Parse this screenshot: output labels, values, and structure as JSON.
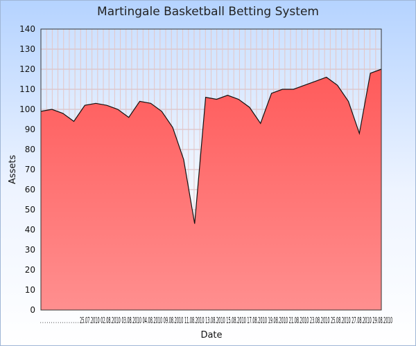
{
  "chart_data": {
    "type": "area",
    "title": "Martingale Basketball Betting System",
    "xlabel": "Date",
    "ylabel": "Assets",
    "ylim": [
      0,
      140
    ],
    "yticks": [
      0,
      10,
      20,
      30,
      40,
      50,
      60,
      70,
      80,
      90,
      100,
      110,
      120,
      130,
      140
    ],
    "grid": true,
    "x_tick_labels_text": ". . . . . . . . . . . . . . . . . . 25.07.2010 02.08.2010 03.08.2010 04.08.2010 09.08.2010 11.08.2010 13.08.2010 15.08.2010 17.08.2010 19.08.2010 21.08.2010 23.08.2010 25.08.2010 27.08.2010 29.08.2010",
    "values": [
      99,
      100,
      98,
      94,
      102,
      103,
      102,
      100,
      96,
      104,
      103,
      99,
      91,
      75,
      43,
      106,
      105,
      107,
      105,
      101,
      93,
      108,
      110,
      110,
      112,
      114,
      116,
      112,
      104,
      88,
      118,
      120
    ],
    "colors": {
      "fill_top": "#ff5a5a",
      "fill_bottom": "#ff8f8f",
      "line": "#111111"
    }
  }
}
